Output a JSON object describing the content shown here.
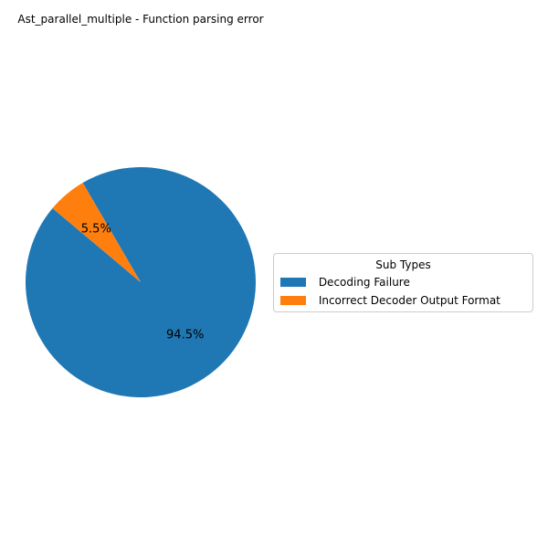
{
  "chart_data": {
    "type": "pie",
    "title": "Ast_parallel_multiple - Function parsing error",
    "legend_title": "Sub Types",
    "legend_placement": "right",
    "slices": [
      {
        "label": " Decoding Failure",
        "value": 94.5,
        "pct_label": "94.5%",
        "color": "#1f77b4"
      },
      {
        "label": " Incorrect Decoder Output Format",
        "value": 5.5,
        "pct_label": "5.5%",
        "color": "#ff7f0e"
      }
    ]
  }
}
